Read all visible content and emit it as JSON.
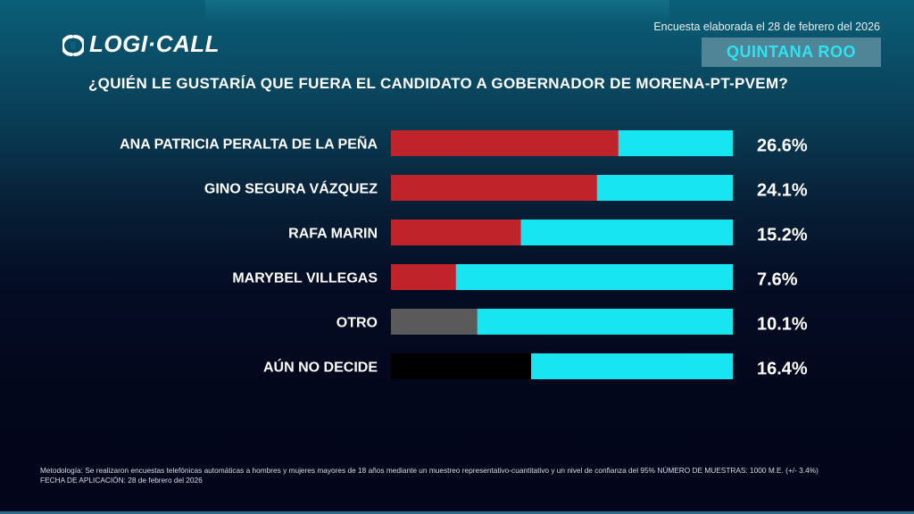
{
  "header": {
    "logo_text": "LOGI·CALL",
    "survey_date": "Encuesta elaborada el 28 de febrero del 2026",
    "region": "QUINTANA ROO",
    "question": "¿QUIÉN LE GUSTARÍA QUE FUERA EL CANDIDATO A GOBERNADOR DE MORENA-PT-PVEM?"
  },
  "colors": {
    "track": "#17e6f2",
    "candidate": "#c0232a",
    "other": "#5a5a5a",
    "undecided": "#000000",
    "region_text": "#29e4f2",
    "region_bg": "#4f8596"
  },
  "chart_data": {
    "type": "bar",
    "orientation": "horizontal",
    "title": "¿QUIÉN LE GUSTARÍA QUE FUERA EL CANDIDATO A GOBERNADOR DE MORENA-PT-PVEM?",
    "xlabel": "",
    "ylabel": "",
    "xlim": [
      0,
      40
    ],
    "grid": false,
    "categories": [
      "ANA PATRICIA PERALTA DE LA PEÑA",
      "GINO SEGURA VÁZQUEZ",
      "RAFA MARIN",
      "MARYBEL VILLEGAS",
      "OTRO",
      "AÚN NO DECIDE"
    ],
    "values": [
      26.6,
      24.1,
      15.2,
      7.6,
      10.1,
      16.4
    ],
    "value_labels": [
      "26.6%",
      "24.1%",
      "15.2%",
      "7.6%",
      "10.1%",
      "16.4%"
    ],
    "bar_color_keys": [
      "candidate",
      "candidate",
      "candidate",
      "candidate",
      "other",
      "undecided"
    ]
  },
  "footer": {
    "methodology": "Metodología: Se realizaron encuestas telefónicas automáticas a hombres y mujeres mayores de 18 años mediante un muestreo representativo-cuantitativo y un nivel de confianza del 95% NÚMERO DE MUESTRAS: 1000 M.E. (+/- 3.4%)",
    "application_date": "FECHA DE APLICACIÓN: 28 de febrero del 2026"
  }
}
